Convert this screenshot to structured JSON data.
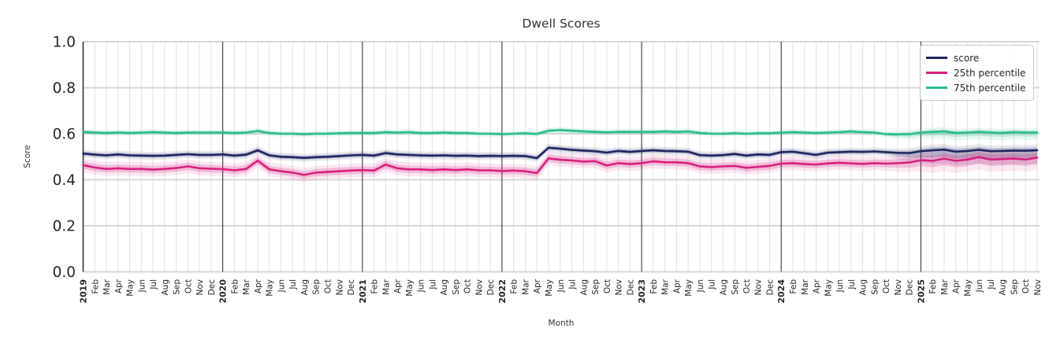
{
  "title": "Dwell Scores",
  "axes": {
    "xlabel": "Month",
    "ylabel": "Score"
  },
  "legend": {
    "entries": [
      {
        "label": "score",
        "color": "#1f2761"
      },
      {
        "label": "25th percentile",
        "color": "#d6217e"
      },
      {
        "label": "75th percentile",
        "color": "#2bbc8e"
      }
    ]
  },
  "colors": {
    "grid_horizontal": "#d7d7d7",
    "grid_month": "#e1e1e1",
    "grid_year": "#3a3a3a",
    "spine": "#2e2e2e",
    "tick_text": "#262626"
  },
  "chart_data": {
    "type": "line",
    "title": "Dwell Scores",
    "xlabel": "Month",
    "ylabel": "Score",
    "ylim": [
      0.0,
      1.0
    ],
    "yticks": [
      0.0,
      0.2,
      0.4,
      0.6,
      0.8,
      1.0
    ],
    "grid": true,
    "legend_position": "upper right",
    "x_tick_labels": [
      "2019",
      "Feb",
      "Mar",
      "Apr",
      "May",
      "Jun",
      "Jul",
      "Aug",
      "Sep",
      "Oct",
      "Nov",
      "Dec",
      "2020",
      "Feb",
      "Mar",
      "Apr",
      "May",
      "Jun",
      "Jul",
      "Aug",
      "Sep",
      "Oct",
      "Nov",
      "Dec",
      "2021",
      "Feb",
      "Mar",
      "Apr",
      "May",
      "Jun",
      "Jul",
      "Aug",
      "Sep",
      "Oct",
      "Nov",
      "Dec",
      "2022",
      "Feb",
      "Mar",
      "Apr",
      "May",
      "Jun",
      "Jul",
      "Aug",
      "Sep",
      "Oct",
      "Nov",
      "Dec",
      "2023",
      "Feb",
      "Mar",
      "Apr",
      "May",
      "Jun",
      "Jul",
      "Aug",
      "Sep",
      "Oct",
      "Nov",
      "Dec",
      "2024",
      "Feb",
      "Mar",
      "Apr",
      "May",
      "Jun",
      "Jul",
      "Aug",
      "Sep",
      "Oct",
      "Nov",
      "Dec",
      "2025",
      "Feb",
      "Mar",
      "Apr",
      "May",
      "Jun",
      "Jul",
      "Aug",
      "Sep",
      "Oct",
      "Nov"
    ],
    "year_start_every": 12,
    "series": [
      {
        "name": "score",
        "color": "#1f2761",
        "band_halfwidth": 0.009,
        "tail_band": {
          "start_index": 69,
          "lower_extra": 0.022,
          "upper_extra": 0.004
        },
        "values": [
          0.514,
          0.509,
          0.506,
          0.51,
          0.506,
          0.505,
          0.504,
          0.505,
          0.508,
          0.511,
          0.508,
          0.508,
          0.51,
          0.505,
          0.509,
          0.528,
          0.506,
          0.5,
          0.498,
          0.495,
          0.498,
          0.5,
          0.503,
          0.506,
          0.508,
          0.505,
          0.516,
          0.51,
          0.508,
          0.506,
          0.505,
          0.506,
          0.504,
          0.505,
          0.503,
          0.504,
          0.503,
          0.504,
          0.503,
          0.494,
          0.539,
          0.535,
          0.53,
          0.527,
          0.524,
          0.518,
          0.525,
          0.521,
          0.525,
          0.528,
          0.525,
          0.524,
          0.522,
          0.507,
          0.505,
          0.507,
          0.512,
          0.505,
          0.51,
          0.508,
          0.52,
          0.522,
          0.515,
          0.508,
          0.518,
          0.52,
          0.522,
          0.521,
          0.523,
          0.52,
          0.517,
          0.516,
          0.524,
          0.528,
          0.531,
          0.522,
          0.525,
          0.53,
          0.524,
          0.525,
          0.527,
          0.526,
          0.528
        ]
      },
      {
        "name": "25th percentile",
        "color": "#d6217e",
        "band_halfwidth": 0.016,
        "tail_band": {
          "start_index": 69,
          "lower_extra": 0.012,
          "upper_extra": 0.006
        },
        "values": [
          0.464,
          0.453,
          0.447,
          0.45,
          0.447,
          0.447,
          0.444,
          0.447,
          0.451,
          0.458,
          0.45,
          0.448,
          0.446,
          0.441,
          0.447,
          0.483,
          0.445,
          0.437,
          0.431,
          0.421,
          0.431,
          0.434,
          0.437,
          0.44,
          0.442,
          0.44,
          0.466,
          0.45,
          0.445,
          0.445,
          0.442,
          0.445,
          0.442,
          0.445,
          0.441,
          0.441,
          0.438,
          0.44,
          0.437,
          0.429,
          0.493,
          0.487,
          0.484,
          0.479,
          0.481,
          0.462,
          0.472,
          0.468,
          0.472,
          0.48,
          0.476,
          0.476,
          0.472,
          0.458,
          0.455,
          0.458,
          0.46,
          0.452,
          0.456,
          0.46,
          0.47,
          0.472,
          0.468,
          0.466,
          0.471,
          0.474,
          0.471,
          0.469,
          0.472,
          0.47,
          0.472,
          0.475,
          0.485,
          0.482,
          0.492,
          0.482,
          0.488,
          0.498,
          0.488,
          0.49,
          0.492,
          0.488,
          0.496
        ]
      },
      {
        "name": "75th percentile",
        "color": "#2bbc8e",
        "band_halfwidth": 0.007,
        "tail_band": {
          "start_index": 69,
          "lower_extra": 0.01,
          "upper_extra": 0.003
        },
        "values": [
          0.608,
          0.605,
          0.603,
          0.605,
          0.603,
          0.605,
          0.607,
          0.605,
          0.603,
          0.605,
          0.605,
          0.605,
          0.605,
          0.603,
          0.605,
          0.612,
          0.603,
          0.6,
          0.6,
          0.598,
          0.6,
          0.6,
          0.602,
          0.603,
          0.603,
          0.603,
          0.607,
          0.605,
          0.607,
          0.603,
          0.603,
          0.605,
          0.603,
          0.603,
          0.6,
          0.6,
          0.598,
          0.6,
          0.602,
          0.599,
          0.613,
          0.616,
          0.613,
          0.61,
          0.608,
          0.606,
          0.608,
          0.608,
          0.608,
          0.608,
          0.61,
          0.608,
          0.61,
          0.603,
          0.6,
          0.6,
          0.602,
          0.6,
          0.602,
          0.602,
          0.605,
          0.607,
          0.605,
          0.603,
          0.605,
          0.607,
          0.61,
          0.607,
          0.605,
          0.598,
          0.597,
          0.598,
          0.605,
          0.608,
          0.61,
          0.603,
          0.605,
          0.608,
          0.605,
          0.603,
          0.607,
          0.605,
          0.605
        ]
      }
    ]
  }
}
